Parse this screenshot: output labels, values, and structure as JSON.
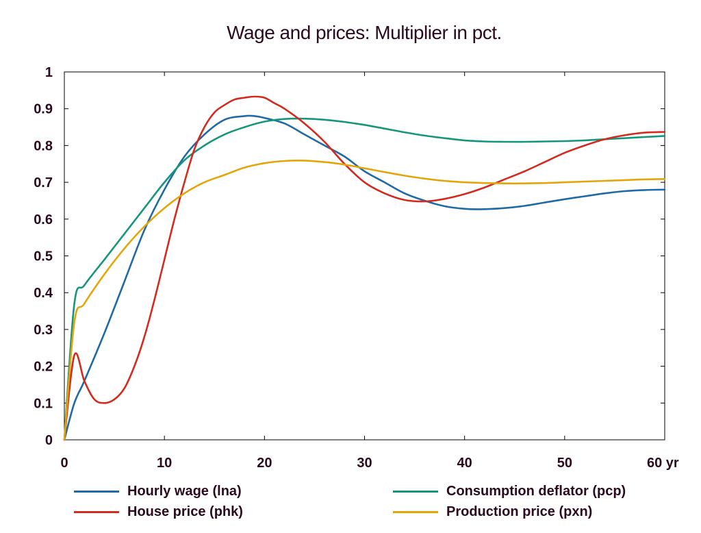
{
  "chart_data": {
    "type": "line",
    "title": "Wage and prices: Multiplier in pct.",
    "xlabel": "",
    "ylabel": "",
    "x_unit": "yr",
    "xlim": [
      0,
      60
    ],
    "ylim": [
      0,
      1
    ],
    "xticks": [
      0,
      10,
      20,
      30,
      40,
      50,
      60
    ],
    "xtick_labels": [
      "0",
      "10",
      "20",
      "30",
      "40",
      "50",
      "60 yr"
    ],
    "yticks": [
      0,
      0.1,
      0.2,
      0.3,
      0.4,
      0.5,
      0.6,
      0.7,
      0.8,
      0.9,
      1
    ],
    "ytick_labels": [
      "0",
      "0.1",
      "0.2",
      "0.3",
      "0.4",
      "0.5",
      "0.6",
      "0.7",
      "0.8",
      "0.9",
      "1"
    ],
    "grid": false,
    "legend_position": "bottom",
    "series": [
      {
        "name": "Hourly wage (lna)",
        "color": "#1f6aa5",
        "x": [
          0,
          1,
          2,
          4,
          6,
          8,
          10,
          12,
          14,
          16,
          18,
          19,
          20,
          22,
          24,
          26,
          28,
          30,
          32,
          34,
          36,
          38,
          40,
          42,
          44,
          46,
          48,
          50,
          52,
          54,
          56,
          58,
          60
        ],
        "y": [
          0,
          0.1,
          0.16,
          0.29,
          0.43,
          0.57,
          0.68,
          0.77,
          0.83,
          0.87,
          0.88,
          0.88,
          0.875,
          0.86,
          0.83,
          0.8,
          0.77,
          0.73,
          0.7,
          0.67,
          0.65,
          0.635,
          0.628,
          0.627,
          0.63,
          0.636,
          0.645,
          0.654,
          0.662,
          0.67,
          0.676,
          0.679,
          0.68
        ]
      },
      {
        "name": "Consumption deflator (pcp)",
        "color": "#15967b",
        "x": [
          0,
          1,
          2,
          4,
          6,
          8,
          10,
          12,
          14,
          16,
          18,
          20,
          22,
          24,
          26,
          28,
          30,
          32,
          34,
          36,
          38,
          40,
          42,
          44,
          46,
          48,
          50,
          52,
          54,
          56,
          58,
          60
        ],
        "y": [
          0,
          0.37,
          0.42,
          0.49,
          0.56,
          0.63,
          0.7,
          0.76,
          0.8,
          0.83,
          0.85,
          0.865,
          0.872,
          0.873,
          0.87,
          0.864,
          0.856,
          0.846,
          0.836,
          0.827,
          0.82,
          0.814,
          0.811,
          0.81,
          0.81,
          0.811,
          0.812,
          0.814,
          0.817,
          0.82,
          0.823,
          0.826
        ]
      },
      {
        "name": "House price (phk)",
        "color": "#d42a1e",
        "x": [
          0,
          1,
          2,
          3,
          4,
          5,
          6,
          7,
          8,
          9,
          10,
          11,
          12,
          13,
          14,
          15,
          16,
          17,
          18,
          19,
          20,
          21,
          22,
          24,
          26,
          28,
          30,
          32,
          34,
          36,
          38,
          40,
          42,
          44,
          46,
          48,
          50,
          52,
          54,
          56,
          58,
          60
        ],
        "y": [
          0,
          0.23,
          0.16,
          0.11,
          0.1,
          0.11,
          0.14,
          0.2,
          0.28,
          0.38,
          0.49,
          0.6,
          0.7,
          0.79,
          0.85,
          0.89,
          0.91,
          0.925,
          0.93,
          0.933,
          0.93,
          0.915,
          0.9,
          0.86,
          0.81,
          0.75,
          0.7,
          0.67,
          0.652,
          0.648,
          0.655,
          0.668,
          0.686,
          0.708,
          0.73,
          0.755,
          0.78,
          0.8,
          0.817,
          0.828,
          0.835,
          0.837
        ]
      },
      {
        "name": "Production price (pxn)",
        "color": "#e3a50a",
        "x": [
          0,
          1,
          2,
          4,
          6,
          8,
          10,
          12,
          14,
          16,
          18,
          20,
          22,
          24,
          26,
          28,
          30,
          32,
          34,
          36,
          38,
          40,
          42,
          44,
          46,
          48,
          50,
          52,
          54,
          56,
          58,
          60
        ],
        "y": [
          0,
          0.32,
          0.37,
          0.45,
          0.52,
          0.58,
          0.63,
          0.67,
          0.7,
          0.72,
          0.74,
          0.752,
          0.758,
          0.759,
          0.755,
          0.748,
          0.738,
          0.728,
          0.718,
          0.71,
          0.704,
          0.7,
          0.698,
          0.697,
          0.697,
          0.698,
          0.7,
          0.702,
          0.704,
          0.706,
          0.708,
          0.709
        ]
      }
    ]
  }
}
